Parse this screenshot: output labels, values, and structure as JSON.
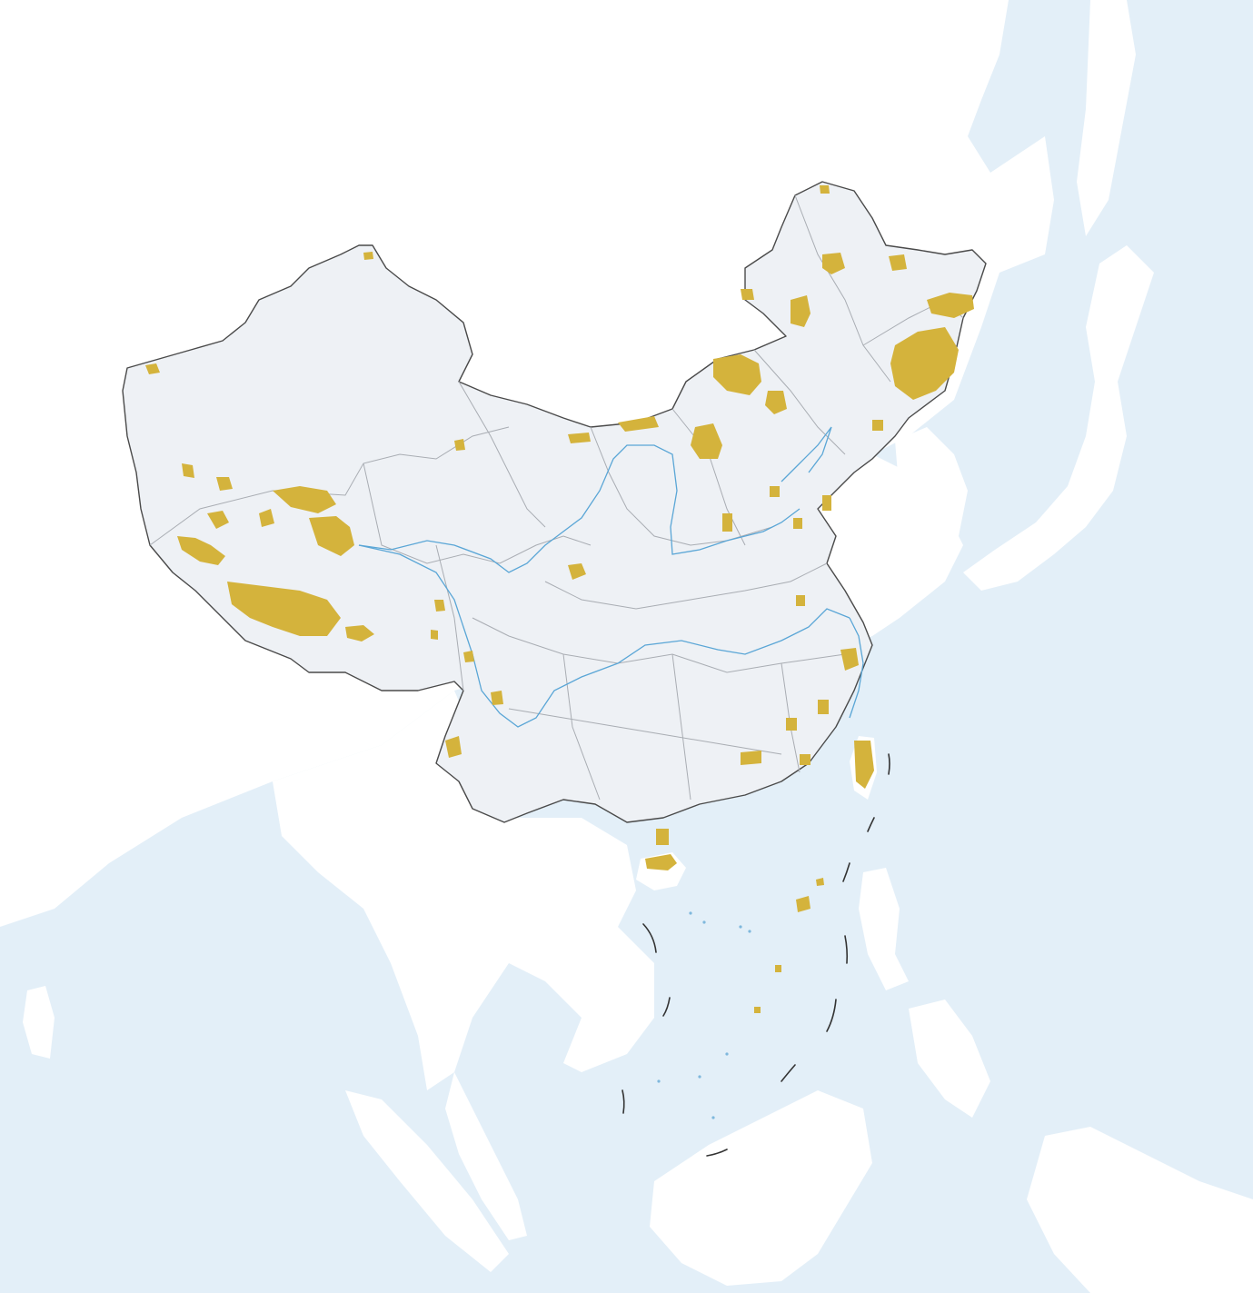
{
  "map": {
    "colors": {
      "sea": "#e3eff8",
      "land": "#ffffff",
      "country_fill": "#eef1f5",
      "country_border": "#4a4a4a",
      "province_border": "#a9adb3",
      "river": "#5aa6d6",
      "highlighted_area": "#d4b33c"
    },
    "layers": [
      "sea",
      "neighbouring-land",
      "country-terrain",
      "province-borders",
      "major-rivers",
      "highlighted-areas",
      "maritime-dashed-line"
    ]
  }
}
